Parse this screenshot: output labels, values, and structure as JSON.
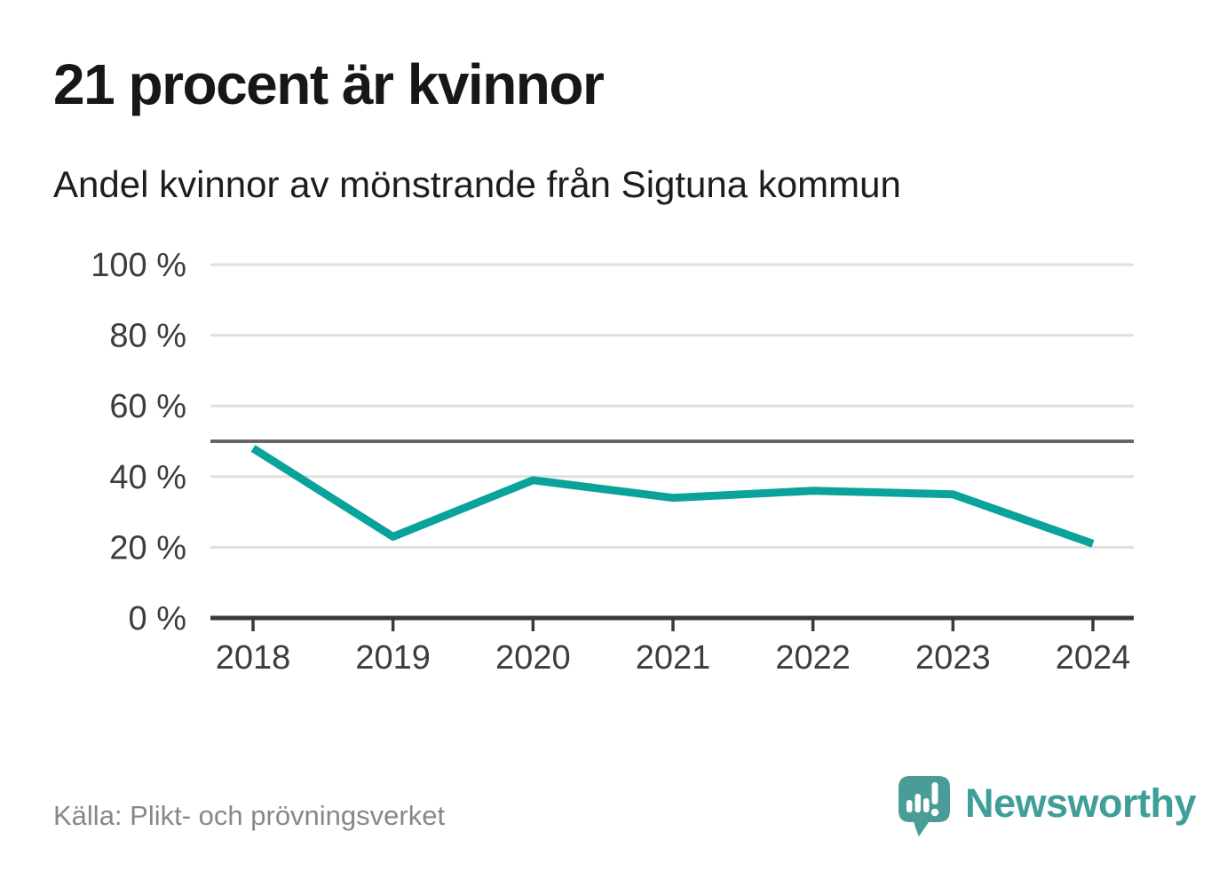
{
  "header": {
    "title": "21 procent är kvinnor",
    "subtitle": "Andel kvinnor av mönstrande från Sigtuna kommun"
  },
  "chart_data": {
    "type": "line",
    "x": [
      "2018",
      "2019",
      "2020",
      "2021",
      "2022",
      "2023",
      "2024"
    ],
    "series": [
      {
        "name": "Andel kvinnor av mönstrande",
        "values": [
          48,
          23,
          39,
          34,
          36,
          35,
          21
        ]
      }
    ],
    "unit": "%",
    "ylim": [
      0,
      100
    ],
    "yticks": [
      0,
      20,
      40,
      60,
      80,
      100
    ],
    "ytick_suffix": " %",
    "reference_line": {
      "value": 50
    },
    "grid": true,
    "legend": "none",
    "line_color": "#0aa39b",
    "reference_color": "#666666",
    "grid_color": "#e0e0e0",
    "axis_color": "#3a3a3a",
    "tick_label_color": "#3d3d3d"
  },
  "footer": {
    "source": "Källa: Plikt- och prövningsverket",
    "brand": "Newsworthy"
  },
  "icons": {
    "logo": "newsworthy-speech-bubble-bar-chart-icon"
  },
  "colors": {
    "accent": "#0aa39b",
    "brand_teal": "#3f9e98",
    "logo_bubble": "#4a9d96",
    "title_text": "#171717",
    "muted_text": "#85888a",
    "grid": "#e0e0e0",
    "axis": "#3a3a3a",
    "background": "#ffffff"
  }
}
